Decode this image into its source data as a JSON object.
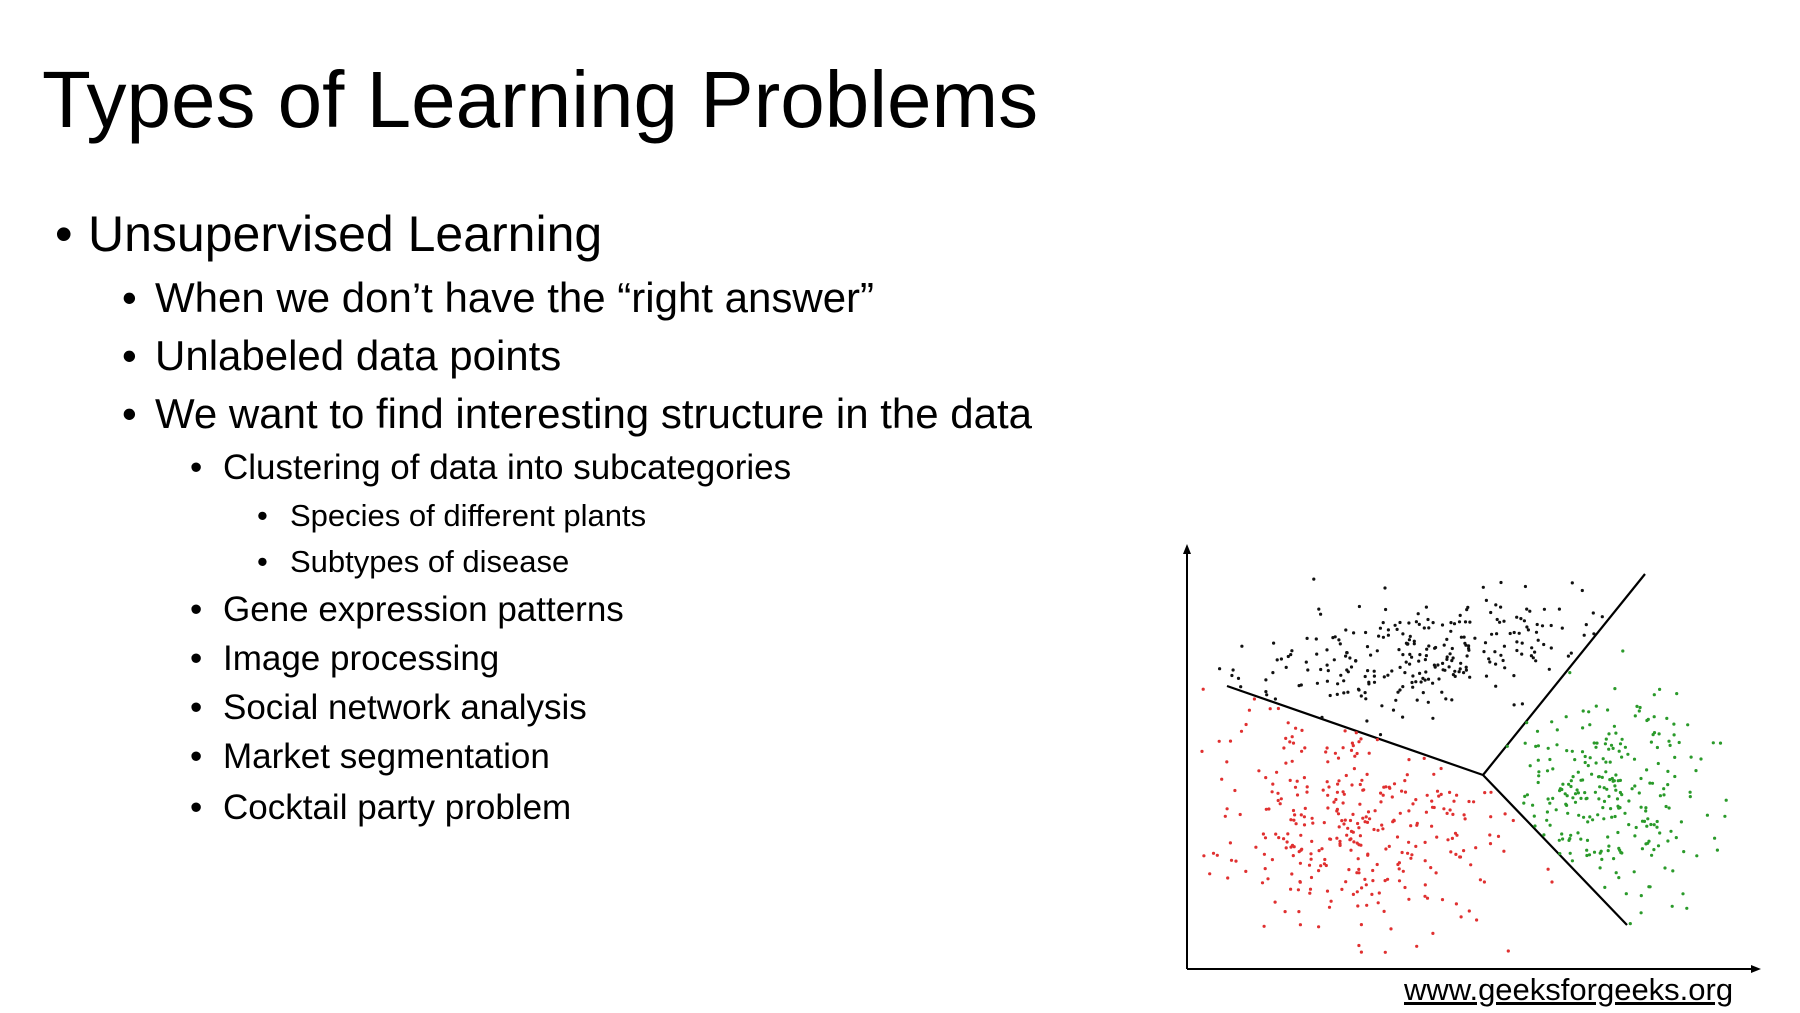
{
  "slide": {
    "title": "Types of Learning Problems",
    "bullet_glyph": "•",
    "bullets": {
      "unsupervised": "Unsupervised Learning",
      "right_answer": "When we don’t have the “right answer”",
      "unlabeled": "Unlabeled data points",
      "structure": "We want to find interesting structure in the data",
      "clustering": "Clustering of data into subcategories",
      "species": "Species of different plants",
      "subtypes": "Subtypes of disease",
      "gene": "Gene expression patterns",
      "image": "Image processing",
      "social": "Social network analysis",
      "market": "Market segmentation",
      "cocktail": "Cocktail party problem"
    },
    "credit": "www.geeksforgeeks.org"
  },
  "figure": {
    "cluster_colors": {
      "top": "#111111",
      "left": "#e03030",
      "right": "#2a9a2a"
    },
    "axis_color": "#000000",
    "boundary_color": "#000000"
  }
}
